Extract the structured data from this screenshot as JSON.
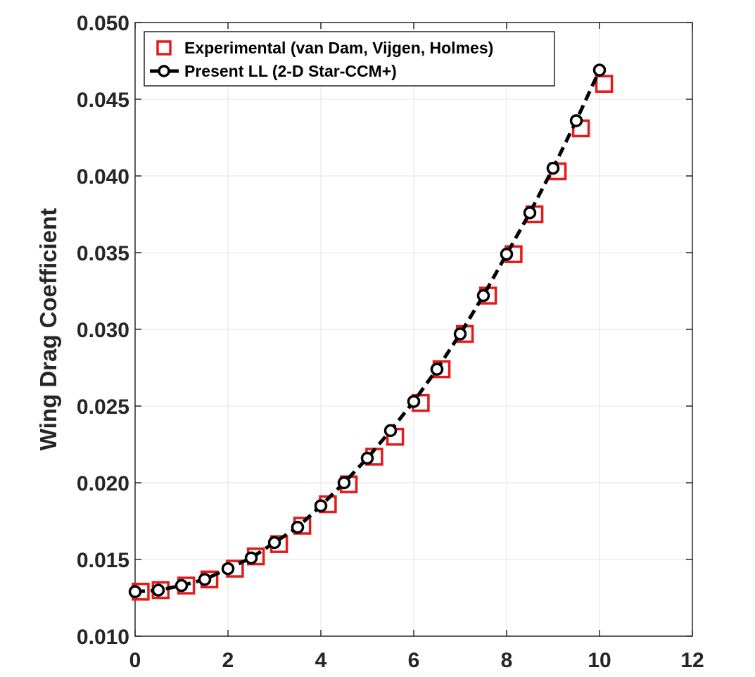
{
  "chart_data": {
    "type": "line",
    "title": "",
    "xlabel": "",
    "ylabel": "Wing Drag Coefficient",
    "xlim": [
      0,
      12
    ],
    "ylim": [
      0.01,
      0.05
    ],
    "xticks": [
      "0",
      "2",
      "4",
      "6",
      "8",
      "10",
      "12"
    ],
    "yticks": [
      "0.010",
      "0.015",
      "0.020",
      "0.025",
      "0.030",
      "0.035",
      "0.040",
      "0.045",
      "0.050"
    ],
    "grid": true,
    "legend_position": "top-left",
    "series": [
      {
        "name": "Experimental (van Dam, Vijgen, Holmes)",
        "marker": "square",
        "line": "none",
        "color": "#e41a1a",
        "x": [
          0.12,
          0.55,
          1.1,
          1.6,
          2.15,
          2.6,
          3.1,
          3.6,
          4.15,
          4.6,
          5.15,
          5.6,
          6.15,
          6.6,
          7.1,
          7.6,
          8.15,
          8.6,
          9.1,
          9.6,
          10.1
        ],
        "y": [
          0.0129,
          0.013,
          0.0133,
          0.0137,
          0.0144,
          0.0152,
          0.016,
          0.0172,
          0.0186,
          0.0199,
          0.0217,
          0.023,
          0.0252,
          0.0274,
          0.0297,
          0.0322,
          0.0349,
          0.0375,
          0.0403,
          0.0431,
          0.046
        ]
      },
      {
        "name": "Present LL (2-D Star-CCM+)",
        "marker": "circle",
        "line": "dashed",
        "color": "#000000",
        "x": [
          0,
          0.5,
          1.0,
          1.5,
          2.0,
          2.5,
          3.0,
          3.5,
          4.0,
          4.5,
          5.0,
          5.5,
          6.0,
          6.5,
          7.0,
          7.5,
          8.0,
          8.5,
          9.0,
          9.5,
          10.0
        ],
        "y": [
          0.0129,
          0.013,
          0.0133,
          0.0137,
          0.0144,
          0.0151,
          0.0161,
          0.0171,
          0.0185,
          0.02,
          0.0216,
          0.0234,
          0.0253,
          0.0274,
          0.0297,
          0.0322,
          0.0349,
          0.0376,
          0.0405,
          0.0436,
          0.0469
        ]
      }
    ]
  }
}
